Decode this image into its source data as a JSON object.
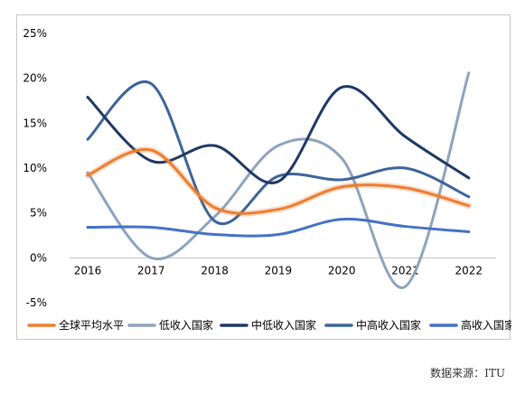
{
  "chart_data": {
    "type": "line",
    "title": "",
    "xlabel": "",
    "ylabel": "",
    "categories": [
      "2016",
      "2017",
      "2018",
      "2019",
      "2020",
      "2021",
      "2022"
    ],
    "ylim": [
      -5,
      25
    ],
    "yticks": [
      {
        "value": 25,
        "label": "25%"
      },
      {
        "value": 20,
        "label": "20%"
      },
      {
        "value": 15,
        "label": "15%"
      },
      {
        "value": 10,
        "label": "10%"
      },
      {
        "value": 5,
        "label": "5%"
      },
      {
        "value": 0,
        "label": "0%"
      },
      {
        "value": -5,
        "label": "-5%"
      }
    ],
    "grid": false,
    "legend_position": "bottom",
    "series": [
      {
        "name": "全球平均水平",
        "color": "#ed7d31",
        "values": [
          9.2,
          12.0,
          5.6,
          5.4,
          7.9,
          7.8,
          5.8
        ]
      },
      {
        "name": "低收入国家",
        "color": "#8ea3bd",
        "values": [
          9.5,
          0.0,
          4.6,
          12.5,
          11.1,
          -3.2,
          20.6
        ]
      },
      {
        "name": "中低收入国家",
        "color": "#1f3864",
        "values": [
          17.9,
          10.8,
          12.5,
          8.5,
          19.0,
          13.5,
          8.9
        ]
      },
      {
        "name": "中高收入国家",
        "color": "#3d6498",
        "values": [
          13.2,
          19.4,
          4.1,
          9.1,
          8.7,
          10.0,
          6.8
        ]
      },
      {
        "name": "高收入国家",
        "color": "#4472c4",
        "values": [
          3.4,
          3.4,
          2.6,
          2.6,
          4.3,
          3.5,
          2.9
        ]
      }
    ]
  },
  "source_note": "数据来源：ITU"
}
